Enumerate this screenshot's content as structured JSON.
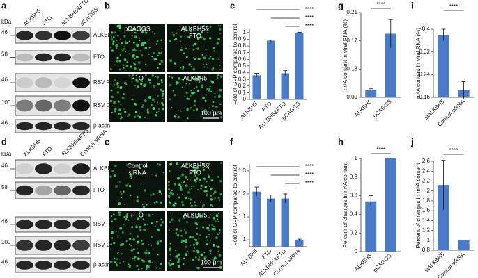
{
  "panel_letters": [
    "a",
    "b",
    "c",
    "d",
    "e",
    "f",
    "g",
    "h",
    "i",
    "j"
  ],
  "blots": [
    {
      "kda_label": "kDa",
      "lanes": [
        "ALKBH5",
        "FTO",
        "ALKBH5&FTO",
        "pCAGGS"
      ],
      "rows": [
        {
          "kda": 46,
          "label": "ALKBH5"
        },
        {
          "kda": 58,
          "label": "FTO"
        },
        {
          "kda": 46,
          "label": "RSV F"
        },
        {
          "kda": 100,
          "label": "RSV G"
        },
        {
          "kda": 46,
          "label": "β-actin"
        }
      ]
    },
    {
      "kda_label": "kDa",
      "lanes": [
        "ALKBH5",
        "FTO",
        "ALKBH5&FTO",
        "Control siRNA"
      ],
      "rows": [
        {
          "kda": 46,
          "label": "ALKBH5"
        },
        {
          "kda": 58,
          "label": "FTO"
        },
        {
          "kda": 46,
          "label": "RSV F"
        },
        {
          "kda": 100,
          "label": "RSV G"
        },
        {
          "kda": 46,
          "label": "β-actin"
        }
      ]
    }
  ],
  "micrographs": [
    {
      "images": [
        {
          "label_lines": [
            "pCAGGS"
          ]
        },
        {
          "label_lines": [
            "ALKBH5&",
            "FTO"
          ]
        },
        {
          "label_lines": [
            "FTO"
          ]
        },
        {
          "label_lines": [
            "ALKBH5"
          ]
        }
      ],
      "scale_bar": "100 μm"
    },
    {
      "images": [
        {
          "label_lines": [
            "Control",
            "siRNA"
          ]
        },
        {
          "label_lines": [
            "ALKBH5&",
            "FTO"
          ]
        },
        {
          "label_lines": [
            "FTO"
          ]
        },
        {
          "label_lines": [
            "ALKBH5"
          ]
        }
      ],
      "scale_bar": "100 μm"
    }
  ],
  "chart_data": [
    {
      "type": "bar",
      "ylabel": "Fold of GFP compared to control",
      "categories": [
        "ALKBH5",
        "FTO",
        "ALKBH5&FTO",
        "pCAGGS"
      ],
      "values": [
        0.36,
        0.88,
        0.39,
        1.0
      ],
      "errors": [
        0.03,
        0.01,
        0.04,
        0.005
      ],
      "color": "#4a7bc8",
      "ylim": [
        0,
        1.05
      ],
      "yticks": [
        0,
        0.1,
        0.2,
        0.3,
        0.4,
        0.5,
        0.6,
        0.7,
        0.8,
        0.9,
        1
      ],
      "annotations": [
        {
          "text": "****",
          "between": [
            "ALKBH5",
            "pCAGGS"
          ]
        },
        {
          "text": "****",
          "between": [
            "FTO",
            "pCAGGS"
          ]
        },
        {
          "text": "****",
          "between": [
            "ALKBH5&FTO",
            "pCAGGS"
          ]
        }
      ]
    },
    {
      "type": "bar",
      "ylabel": "Fold of GFP compared to control",
      "categories": [
        "ALKBH5",
        "FTO",
        "ALKBH5&FTO",
        "Control siRNA"
      ],
      "values": [
        1.21,
        1.18,
        1.18,
        1.0
      ],
      "errors": [
        0.02,
        0.015,
        0.02,
        0.003
      ],
      "color": "#4a7bc8",
      "ylim": [
        0.97,
        1.33
      ],
      "yticks": [
        1,
        1.1,
        1.2,
        1.3
      ],
      "annotations": [
        {
          "text": "****",
          "between": [
            "ALKBH5",
            "Control siRNA"
          ]
        },
        {
          "text": "****",
          "between": [
            "FTO",
            "Control siRNA"
          ]
        },
        {
          "text": "****",
          "between": [
            "ALKBH5&FTO",
            "Control siRNA"
          ]
        }
      ]
    },
    {
      "type": "bar",
      "ylabel": "m⁶A content in viral RNA (%)",
      "categories": [
        "ALKBH5",
        "pCAGGS"
      ],
      "values": [
        0.1,
        0.18
      ],
      "errors": [
        0.002,
        0.02
      ],
      "color": "#4a7bc8",
      "ylim": [
        0.09,
        0.21
      ],
      "yticks": [
        0.09,
        0.13,
        0.17,
        0.21
      ],
      "annotations": [
        {
          "text": "****",
          "between": [
            "ALKBH5",
            "pCAGGS"
          ]
        }
      ]
    },
    {
      "type": "bar",
      "ylabel": "Percent of changes in m⁶A content",
      "categories": [
        "ALKBH5",
        "pCAGGS"
      ],
      "values": [
        0.54,
        1.0
      ],
      "errors": [
        0.06,
        0.003
      ],
      "color": "#4a7bc8",
      "ylim": [
        0,
        1
      ],
      "yticks": [
        0,
        0.2,
        0.4,
        0.6,
        0.8,
        1
      ],
      "annotations": [
        {
          "text": "****",
          "between": [
            "ALKBH5",
            "pCAGGS"
          ]
        }
      ]
    },
    {
      "type": "bar",
      "ylabel": "m⁶A content in viral RNA (%)",
      "categories": [
        "siALKBH5",
        "Control siRNA"
      ],
      "values": [
        0.38,
        0.185
      ],
      "errors": [
        0.02,
        0.03
      ],
      "color": "#4a7bc8",
      "ylim": [
        0.16,
        0.4
      ],
      "yticks": [
        0.16,
        0.24,
        0.32,
        0.4
      ],
      "annotations": [
        {
          "text": "****",
          "between": [
            "siALKBH5",
            "Control siRNA"
          ]
        }
      ]
    },
    {
      "type": "bar",
      "ylabel": "Percent of changes in m⁶A content",
      "categories": [
        "siALKBH5",
        "Control siRNA"
      ],
      "values": [
        2.12,
        1.0
      ],
      "errors": [
        0.5,
        0.005
      ],
      "color": "#4a7bc8",
      "ylim": [
        0.8,
        2.6
      ],
      "yticks": [
        0.8,
        1,
        1.2,
        1.4,
        1.6,
        1.8,
        2,
        2.2,
        2.4,
        2.6
      ],
      "annotations": [
        {
          "text": "****",
          "between": [
            "siALKBH5",
            "Control siRNA"
          ]
        }
      ]
    }
  ]
}
